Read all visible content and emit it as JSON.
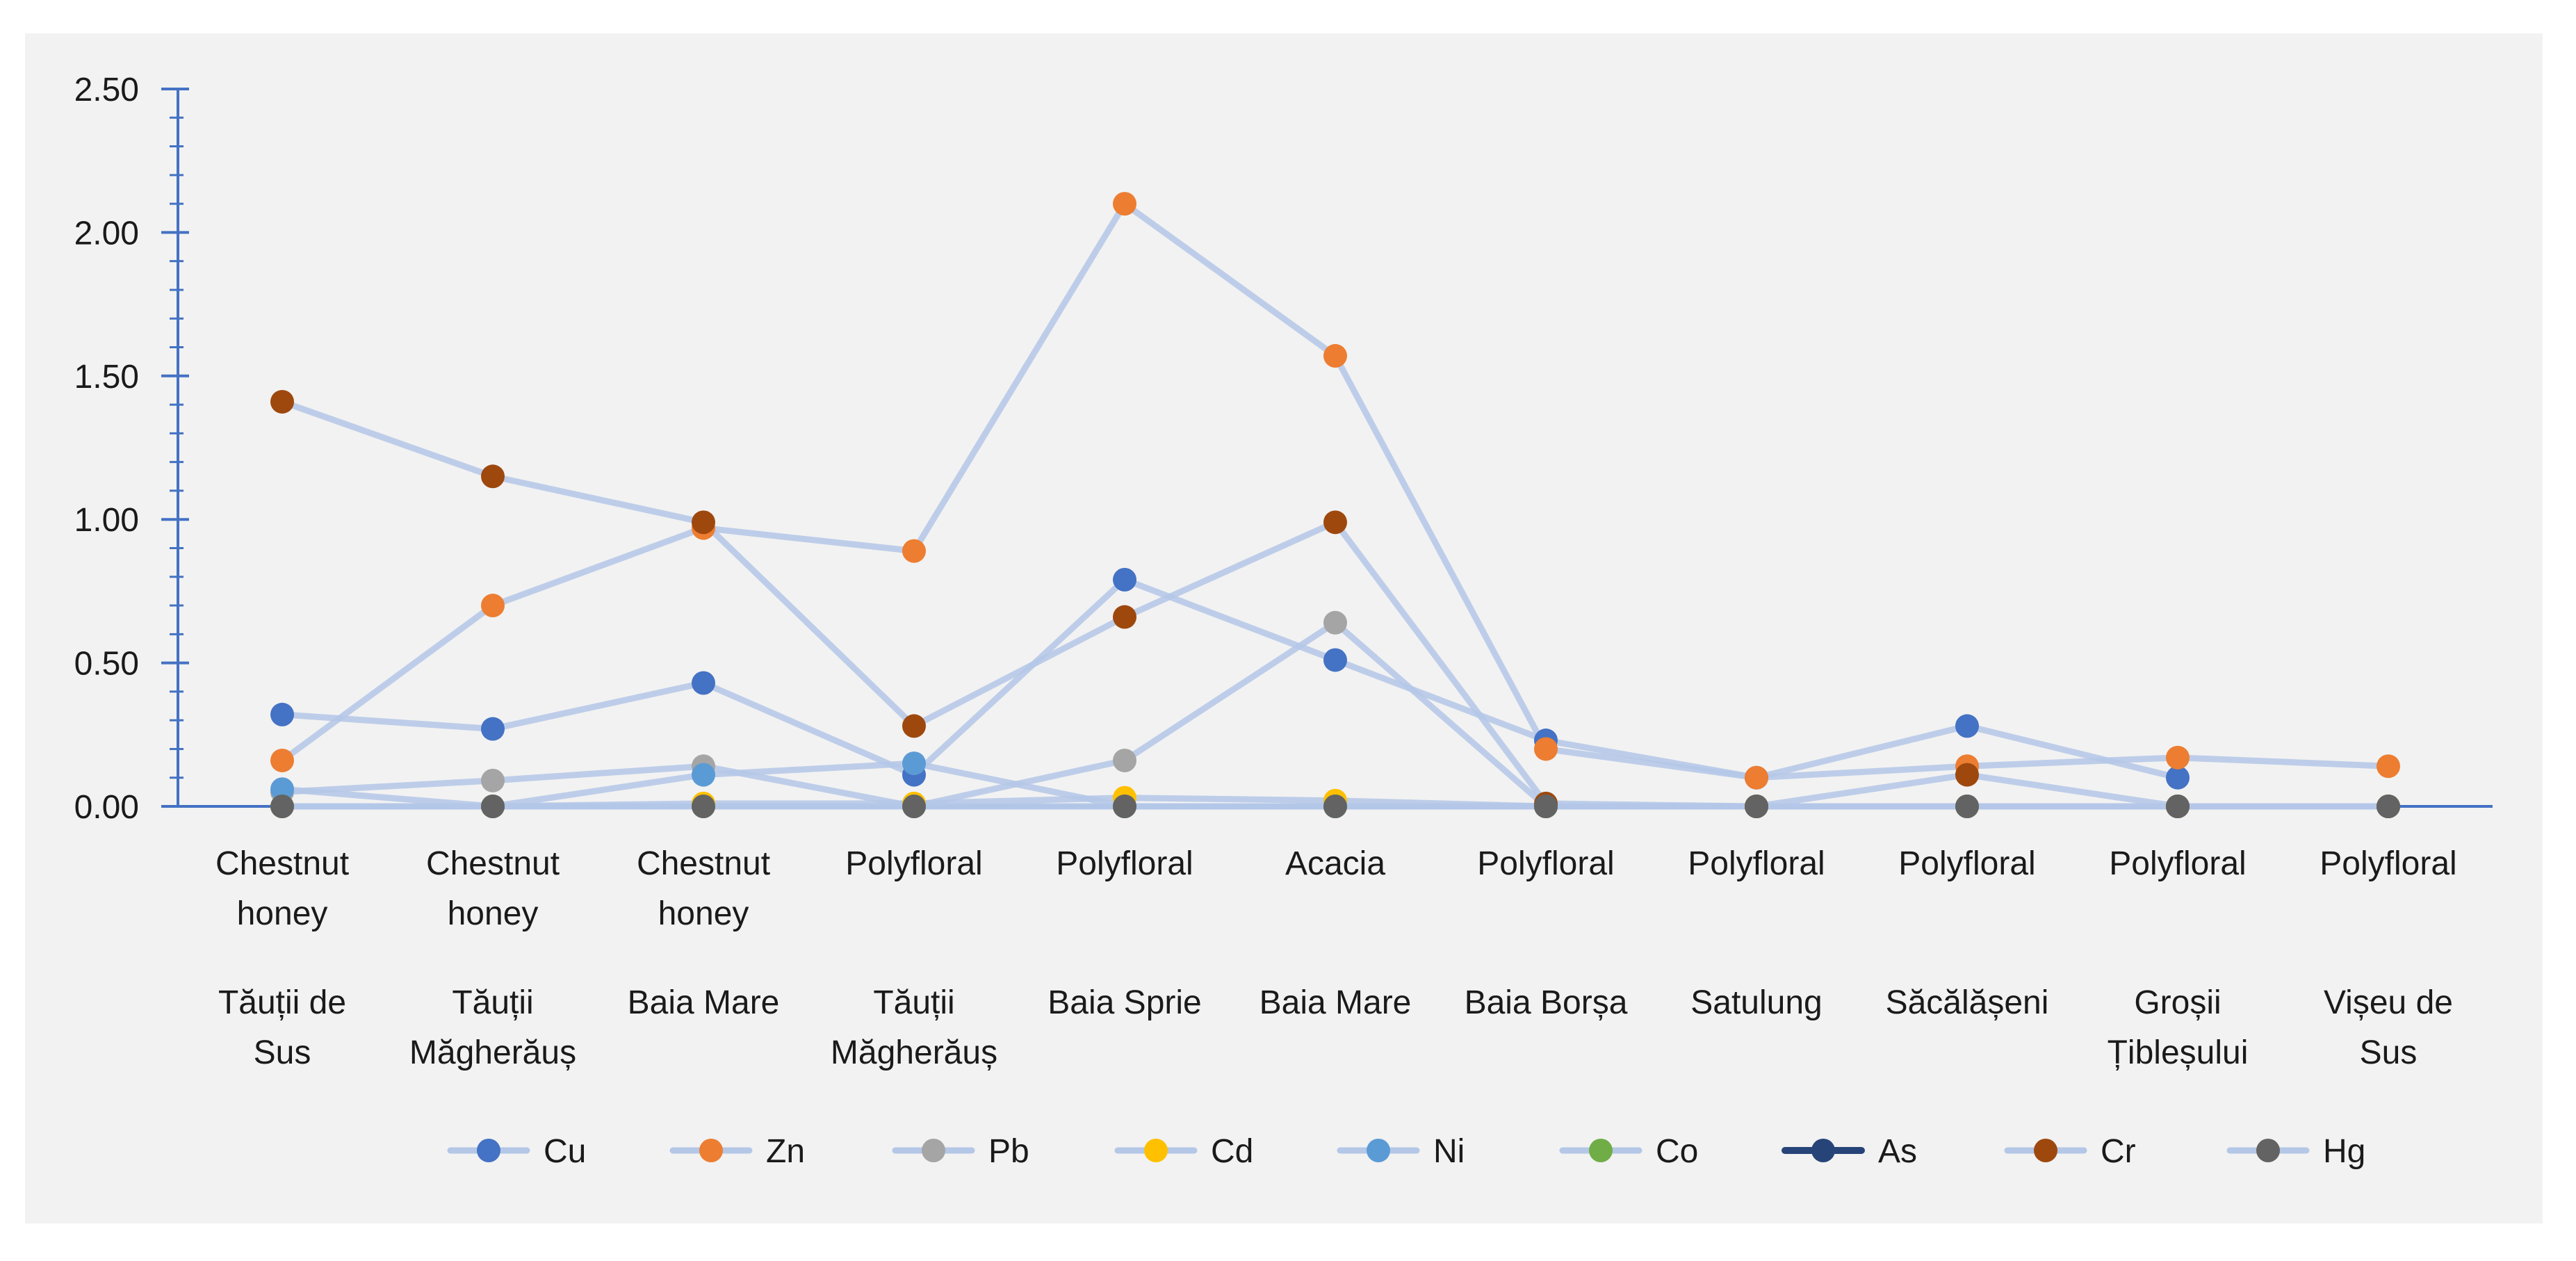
{
  "chart_data": {
    "type": "line",
    "title": "",
    "xlabel": "",
    "ylabel": "",
    "ylim": [
      0,
      2.5
    ],
    "yticks": [
      "0.00",
      "0.50",
      "1.00",
      "1.50",
      "2.00",
      "2.50"
    ],
    "categories": [
      {
        "type": "Chestnut honey",
        "place": "Tăuții de Sus"
      },
      {
        "type": "Chestnut honey",
        "place": "Tăuții Măgherăuș"
      },
      {
        "type": "Chestnut honey",
        "place": "Baia Mare"
      },
      {
        "type": "Polyfloral",
        "place": "Tăuții Măgherăuș"
      },
      {
        "type": "Polyfloral",
        "place": "Baia Sprie"
      },
      {
        "type": "Acacia",
        "place": "Baia Mare"
      },
      {
        "type": "Polyfloral",
        "place": "Baia Borșa"
      },
      {
        "type": "Polyfloral",
        "place": "Satulung"
      },
      {
        "type": "Polyfloral",
        "place": "Săcălășeni"
      },
      {
        "type": "Polyfloral",
        "place": "Groșii Țibleșului"
      },
      {
        "type": "Polyfloral",
        "place": "Vișeu de Sus"
      }
    ],
    "series": [
      {
        "name": "Cu",
        "color": "#4472c4",
        "values": [
          0.32,
          0.27,
          0.43,
          0.11,
          0.79,
          0.51,
          0.23,
          0.1,
          0.28,
          0.1,
          null
        ]
      },
      {
        "name": "Zn",
        "color": "#ed7d31",
        "values": [
          0.16,
          0.7,
          0.97,
          0.89,
          2.1,
          1.57,
          0.2,
          0.1,
          0.14,
          0.17,
          0.14
        ]
      },
      {
        "name": "Pb",
        "color": "#a5a5a5",
        "values": [
          0.05,
          0.09,
          0.14,
          0.0,
          0.16,
          0.64,
          0.0,
          0.0,
          0.0,
          0.0,
          0.0
        ]
      },
      {
        "name": "Cd",
        "color": "#ffc000",
        "values": [
          0.0,
          0.0,
          0.01,
          0.01,
          0.03,
          0.02,
          0.0,
          0.0,
          0.0,
          0.0,
          0.0
        ]
      },
      {
        "name": "Ni",
        "color": "#5b9bd5",
        "values": [
          0.06,
          0.0,
          0.11,
          0.15,
          0.0,
          0.0,
          0.0,
          0.0,
          0.0,
          0.0,
          0.0
        ]
      },
      {
        "name": "Co",
        "color": "#70ad47",
        "values": [
          0.0,
          0.0,
          0.0,
          0.0,
          0.0,
          0.0,
          0.0,
          0.0,
          0.0,
          0.0,
          0.0
        ]
      },
      {
        "name": "As",
        "color": "#264478",
        "values": [
          null,
          null,
          null,
          null,
          null,
          null,
          null,
          null,
          null,
          null,
          null
        ]
      },
      {
        "name": "Cr",
        "color": "#9e480e",
        "values": [
          1.41,
          1.15,
          0.99,
          0.28,
          0.66,
          0.99,
          0.01,
          0.0,
          0.11,
          0.0,
          0.0
        ]
      },
      {
        "name": "Hg",
        "color": "#636363",
        "values": [
          0.0,
          0.0,
          0.0,
          0.0,
          0.0,
          0.0,
          0.0,
          0.0,
          0.0,
          0.0,
          0.0
        ]
      }
    ],
    "legend_position": "bottom"
  }
}
